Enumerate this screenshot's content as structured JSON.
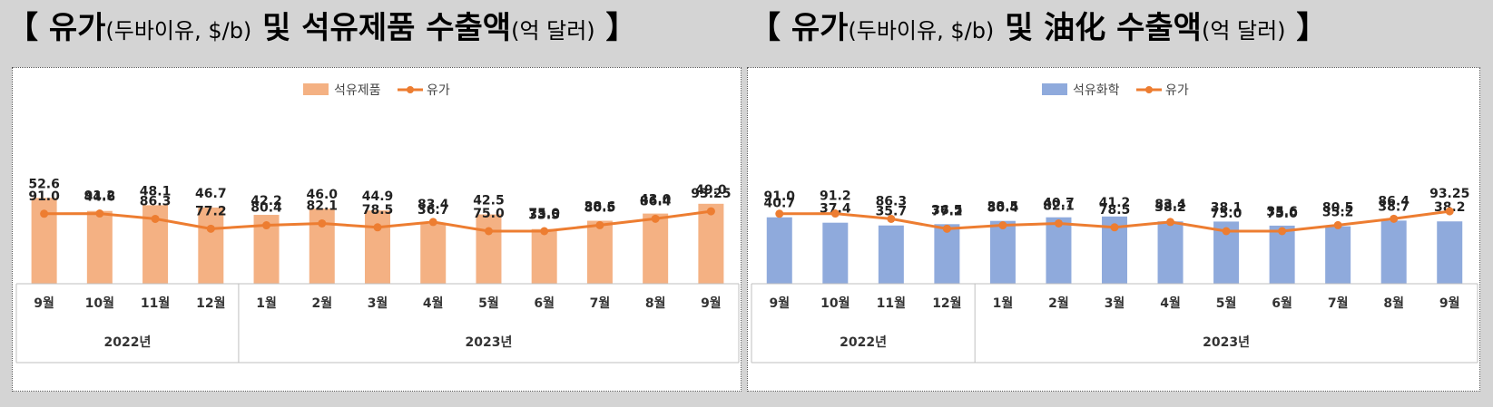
{
  "titles": {
    "left": {
      "open": "【 ",
      "main1": "유가",
      "sub": "(두바이유, $/b)",
      "main2": " 및 석유제품 수출액",
      "sub2": "(억 달러)",
      "close": " 】"
    },
    "right": {
      "open": "【 ",
      "main1": "유가",
      "sub": "(두바이유, $/b)",
      "main2": " 및 油化 수출액",
      "sub2": "(억 달러)",
      "close": " 】"
    }
  },
  "colors": {
    "bar_left": "#f4b183",
    "bar_right": "#8faadc",
    "line": "#ed7d31"
  },
  "chart_data": [
    {
      "type": "bar",
      "categories": [
        "9월",
        "10월",
        "11월",
        "12월",
        "1월",
        "2월",
        "3월",
        "4월",
        "5월",
        "6월",
        "7월",
        "8월",
        "9월"
      ],
      "year_groups": [
        {
          "label": "2022년",
          "count": 4
        },
        {
          "label": "2023년",
          "count": 9
        }
      ],
      "series": [
        {
          "name": "석유제품",
          "type": "bar",
          "values": [
            52.6,
            44.6,
            48.1,
            46.7,
            42.2,
            46.0,
            44.9,
            36.7,
            42.5,
            33.5,
            38.6,
            43.0,
            49.0
          ],
          "labels": [
            "52.6",
            "44.6",
            "48.1",
            "46.7",
            "42.2",
            "46.0",
            "44.9",
            "36.7",
            "42.5",
            "33.5",
            "38.6",
            "43.0",
            "49.0"
          ]
        },
        {
          "name": "유가",
          "type": "line",
          "values": [
            91.0,
            91.2,
            86.3,
            77.2,
            80.4,
            82.1,
            78.5,
            83.4,
            75.0,
            75.0,
            80.5,
            86.4,
            93.25
          ],
          "labels": [
            "91.0",
            "91.2",
            "86.3",
            "77.2",
            "80.4",
            "82.1",
            "78.5",
            "83.4",
            "75.0",
            "75.0",
            "80.5",
            "86.4",
            "93.25"
          ]
        }
      ],
      "legend": "top-center"
    },
    {
      "type": "bar",
      "categories": [
        "9월",
        "10월",
        "11월",
        "12월",
        "1월",
        "2월",
        "3월",
        "4월",
        "5월",
        "6월",
        "7월",
        "8월",
        "9월"
      ],
      "year_groups": [
        {
          "label": "2022년",
          "count": 4
        },
        {
          "label": "2023년",
          "count": 9
        }
      ],
      "series": [
        {
          "name": "석유화학",
          "type": "bar",
          "values": [
            40.7,
            37.4,
            35.7,
            36.5,
            38.5,
            40.7,
            41.2,
            38.2,
            38.1,
            35.6,
            35.2,
            38.7,
            38.2
          ],
          "labels": [
            "40.7",
            "37.4",
            "35.7",
            "36.5",
            "38.5",
            "40.7",
            "41.2",
            "38.2",
            "38.1",
            "35.6",
            "35.2",
            "38.7",
            "38.2"
          ]
        },
        {
          "name": "유가",
          "type": "line",
          "values": [
            91.0,
            91.2,
            86.3,
            77.2,
            80.4,
            82.1,
            78.5,
            83.4,
            75.0,
            75.0,
            80.5,
            86.4,
            93.25
          ],
          "labels": [
            "91.0",
            "91.2",
            "86.3",
            "77.2",
            "80.4",
            "82.1",
            "78.5",
            "83.4",
            "75.0",
            "75.0",
            "80.5",
            "86.4",
            "93.25"
          ]
        }
      ],
      "legend": "top-center"
    }
  ]
}
